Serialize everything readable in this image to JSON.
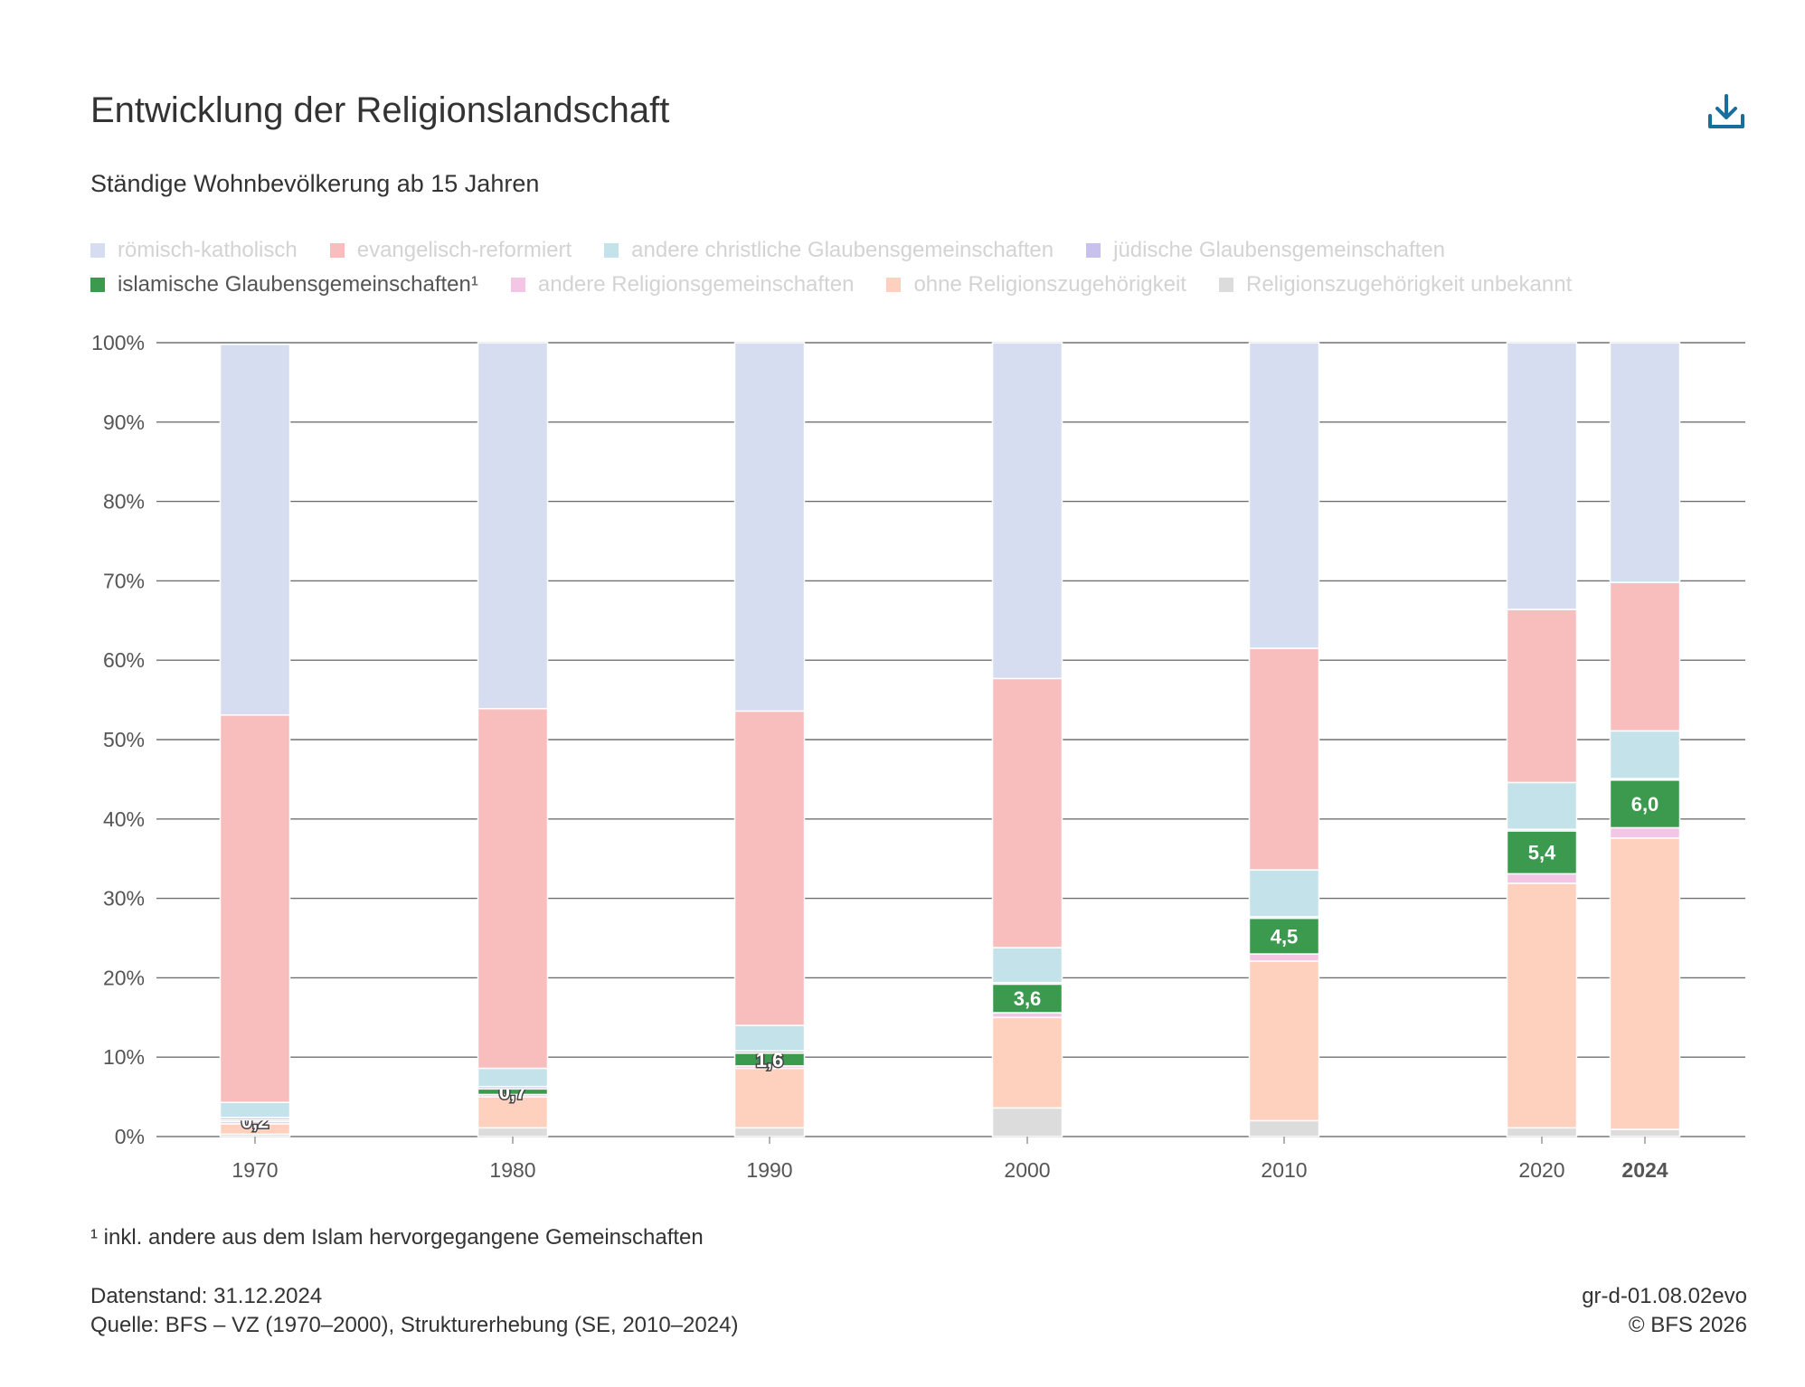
{
  "header": {
    "title": "Entwicklung der Religionslandschaft",
    "subtitle": "Ständige Wohnbevölkerung ab 15 Jahren",
    "download_icon": "download-icon"
  },
  "legend": [
    {
      "label": "römisch-katholisch",
      "color": "#d6ddf1",
      "active": false
    },
    {
      "label": "evangelisch-reformiert",
      "color": "#f8bdbd",
      "active": false
    },
    {
      "label": "andere christliche Glaubensgemeinschaften",
      "color": "#c4e2ea",
      "active": false
    },
    {
      "label": "jüdische Glaubensgemeinschaften",
      "color": "#c8c1ec",
      "active": false
    },
    {
      "label": "islamische Glaubensgemeinschaften¹",
      "color": "#3c9a4f",
      "active": true
    },
    {
      "label": "andere Religionsgemeinschaften",
      "color": "#f4c6e6",
      "active": false
    },
    {
      "label": "ohne Religionszugehörigkeit",
      "color": "#fdd1bd",
      "active": false
    },
    {
      "label": "Religionszugehörigkeit unbekannt",
      "color": "#dcdcdc",
      "active": false
    }
  ],
  "chart_data": {
    "type": "bar",
    "stacked": true,
    "ylim": [
      0,
      100
    ],
    "y_ticks": [
      0,
      10,
      20,
      30,
      40,
      50,
      60,
      70,
      80,
      90,
      100
    ],
    "y_tick_labels": [
      "0%",
      "10%",
      "20%",
      "30%",
      "40%",
      "50%",
      "60%",
      "70%",
      "80%",
      "90%",
      "100%"
    ],
    "categories": [
      "1970",
      "1980",
      "1990",
      "2000",
      "2010",
      "2020",
      "2024"
    ],
    "highlight_category": "2024",
    "grid": true,
    "legend_position": "top",
    "series": [
      {
        "name": "Religionszugehörigkeit unbekannt",
        "color": "#dcdcdc",
        "values": [
          0.3,
          1.1,
          1.1,
          3.6,
          2.0,
          1.1,
          0.9
        ]
      },
      {
        "name": "ohne Religionszugehörigkeit",
        "color": "#fdd1bd",
        "values": [
          1.3,
          3.9,
          7.5,
          11.4,
          20.1,
          30.8,
          36.7
        ]
      },
      {
        "name": "andere Religionsgemeinschaften",
        "color": "#f4c6e6",
        "values": [
          0.3,
          0.3,
          0.3,
          0.6,
          0.9,
          1.2,
          1.3
        ]
      },
      {
        "name": "islamische Glaubensgemeinschaften¹",
        "color": "#3c9a4f",
        "values": [
          0.2,
          0.7,
          1.6,
          3.6,
          4.5,
          5.4,
          6.0
        ]
      },
      {
        "name": "jüdische Glaubensgemeinschaften",
        "color": "#c8c1ec",
        "values": [
          0.3,
          0.3,
          0.3,
          0.2,
          0.2,
          0.2,
          0.2
        ]
      },
      {
        "name": "andere christliche Glaubensgemeinschaften",
        "color": "#c4e2ea",
        "values": [
          1.9,
          2.3,
          3.2,
          4.4,
          5.9,
          5.9,
          6.0
        ]
      },
      {
        "name": "evangelisch-reformiert",
        "color": "#f8bdbd",
        "values": [
          48.8,
          45.3,
          39.6,
          33.9,
          27.9,
          21.8,
          18.7
        ]
      },
      {
        "name": "römisch-katholisch",
        "color": "#d6ddf1",
        "values": [
          46.7,
          46.1,
          46.4,
          42.3,
          38.5,
          33.6,
          30.2
        ]
      }
    ],
    "value_labels": {
      "series": "islamische Glaubensgemeinschaften¹",
      "labels": [
        "0,2",
        "0,7",
        "1,6",
        "3,6",
        "4,5",
        "5,4",
        "6,0"
      ]
    }
  },
  "footer": {
    "footnote": "¹ inkl. andere aus dem Islam hervorgegangene Gemeinschaften",
    "datenstand": "Datenstand: 31.12.2024",
    "quelle": "Quelle: BFS – VZ (1970–2000), Strukturerhebung (SE, 2010–2024)",
    "code": "gr-d-01.08.02evo",
    "copyright": "© BFS 2026"
  }
}
